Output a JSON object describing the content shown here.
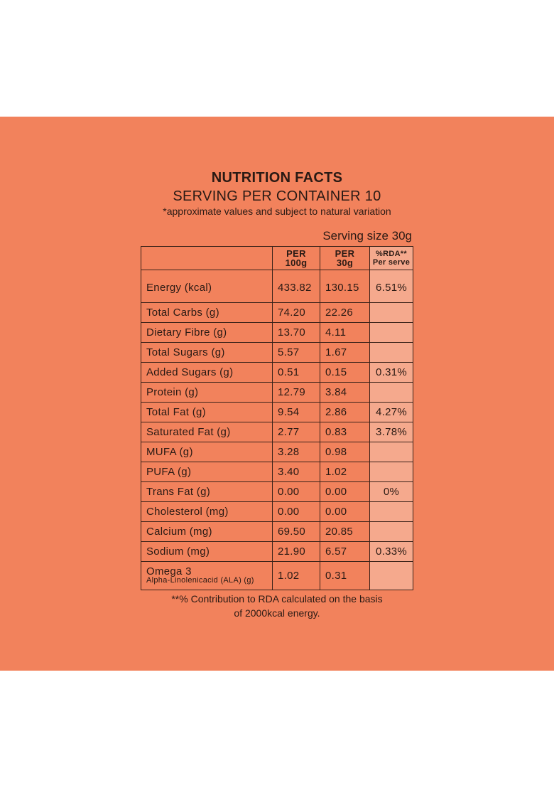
{
  "title": "NUTRITION FACTS",
  "subtitle": "SERVING PER CONTAINER 10",
  "note": "*approximate values and subject to natural variation",
  "serving_size": "Serving size 30g",
  "headers": {
    "per100_line1": "PER",
    "per100_line2": "100g",
    "per30_line1": "PER",
    "per30_line2": "30g",
    "rda_line1": "%RDA**",
    "rda_line2": "Per serve"
  },
  "rows": [
    {
      "label": "Energy (kcal)",
      "per100": "433.82",
      "per30": "130.15",
      "rda": "6.51%"
    },
    {
      "label": "Total Carbs (g)",
      "per100": "74.20",
      "per30": "22.26",
      "rda": ""
    },
    {
      "label": "Dietary Fibre (g)",
      "per100": "13.70",
      "per30": "4.11",
      "rda": ""
    },
    {
      "label": "Total Sugars (g)",
      "per100": "5.57",
      "per30": "1.67",
      "rda": ""
    },
    {
      "label": "Added Sugars (g)",
      "per100": "0.51",
      "per30": "0.15",
      "rda": "0.31%"
    },
    {
      "label": "Protein (g)",
      "per100": "12.79",
      "per30": "3.84",
      "rda": ""
    },
    {
      "label": "Total Fat (g)",
      "per100": "9.54",
      "per30": "2.86",
      "rda": "4.27%"
    },
    {
      "label": "Saturated Fat (g)",
      "per100": "2.77",
      "per30": "0.83",
      "rda": "3.78%"
    },
    {
      "label": "MUFA (g)",
      "per100": "3.28",
      "per30": "0.98",
      "rda": ""
    },
    {
      "label": "PUFA (g)",
      "per100": "3.40",
      "per30": "1.02",
      "rda": ""
    },
    {
      "label": "Trans Fat (g)",
      "per100": "0.00",
      "per30": "0.00",
      "rda": "0%"
    },
    {
      "label": "Cholesterol (mg)",
      "per100": "0.00",
      "per30": "0.00",
      "rda": ""
    },
    {
      "label": "Calcium (mg)",
      "per100": "69.50",
      "per30": "20.85",
      "rda": ""
    },
    {
      "label": "Sodium (mg)",
      "per100": "21.90",
      "per30": "6.57",
      "rda": "0.33%"
    }
  ],
  "omega": {
    "label": "Omega 3",
    "sublabel": "Alpha-Linolenicacid (ALA) (g)",
    "per100": "1.02",
    "per30": "0.31",
    "rda": ""
  },
  "footer": {
    "line1": "**% Contribution to RDA calculated on the basis",
    "line2": "of 2000kcal energy."
  }
}
